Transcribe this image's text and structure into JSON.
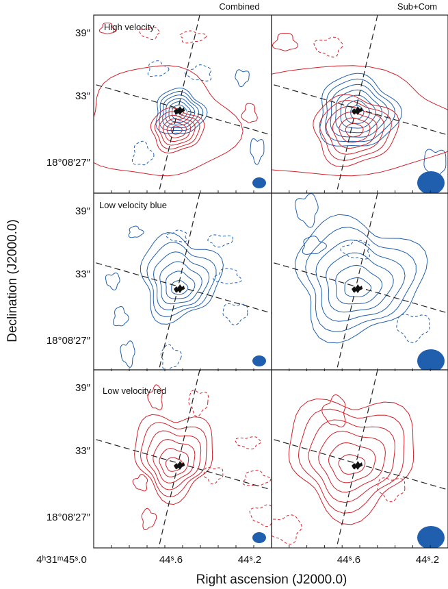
{
  "columns": [
    "Combined",
    "Sub+Com"
  ],
  "panels": [
    "High velocity",
    "Low velocity blue",
    "Low velocity red"
  ],
  "y_axis": {
    "title": "Declination (J2000.0)",
    "ticks": [
      "39″",
      "33″",
      "18°08′27″"
    ]
  },
  "x_axis": {
    "title": "Right ascension (J2000.0)",
    "ticks": [
      "4ʰ31ᵐ45ˢ.0",
      "44ˢ.6",
      "44ˢ.2"
    ]
  }
}
